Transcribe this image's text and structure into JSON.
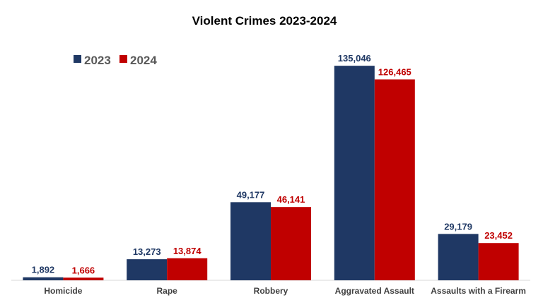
{
  "chart_data": {
    "type": "bar",
    "title": "Violent Crimes 2023-2024",
    "categories": [
      "Homicide",
      "Rape",
      "Robbery",
      "Aggravated Assault",
      "Assaults with a Firearm"
    ],
    "series": [
      {
        "name": "2023",
        "color": "#1f3864",
        "values": [
          1892,
          13273,
          49177,
          135046,
          29179
        ],
        "labels": [
          "1,892",
          "13,273",
          "49,177",
          "135,046",
          "29,179"
        ]
      },
      {
        "name": "2024",
        "color": "#c00000",
        "values": [
          1666,
          13874,
          46141,
          126465,
          23452
        ],
        "labels": [
          "1,666",
          "13,874",
          "46,141",
          "126,465",
          "23,452"
        ]
      }
    ],
    "xlabel": "",
    "ylabel": "",
    "ylim": [
      0,
      140000
    ],
    "grid": false,
    "legend_position": "top-left"
  }
}
